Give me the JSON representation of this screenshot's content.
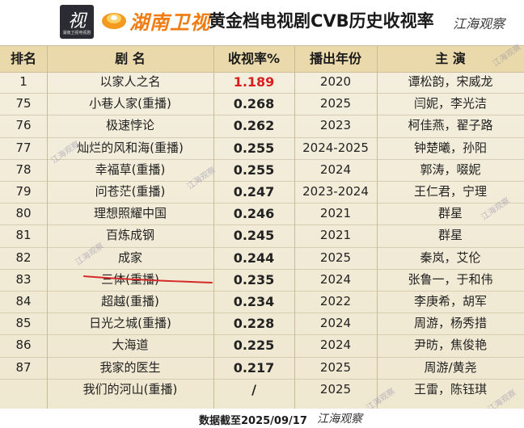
{
  "header": {
    "logo_char": "视",
    "logo_sub": "湖南卫视电视剧",
    "channel_name": "湖南卫视",
    "title": "黄金档电视剧CVB历史收视率",
    "signature": "江海观察"
  },
  "table": {
    "headers": [
      "排名",
      "剧 名",
      "收视率%",
      "播出年份",
      "主 演"
    ],
    "rows": [
      {
        "rank": "1",
        "name": "以家人之名",
        "rate": "1.189",
        "year": "2020",
        "cast": "谭松韵，宋威龙"
      },
      {
        "rank": "75",
        "name": "小巷人家(重播)",
        "rate": "0.268",
        "year": "2025",
        "cast": "闫妮，李光洁"
      },
      {
        "rank": "76",
        "name": "极速悖论",
        "rate": "0.262",
        "year": "2023",
        "cast": "柯佳燕，翟子路"
      },
      {
        "rank": "77",
        "name": "灿烂的风和海(重播)",
        "rate": "0.255",
        "year": "2024-2025",
        "cast": "钟楚曦，孙阳"
      },
      {
        "rank": "78",
        "name": "幸福草(重播)",
        "rate": "0.255",
        "year": "2024",
        "cast": "郭涛，啜妮"
      },
      {
        "rank": "79",
        "name": "问苍茫(重播)",
        "rate": "0.247",
        "year": "2023-2024",
        "cast": "王仁君，宁理"
      },
      {
        "rank": "80",
        "name": "理想照耀中国",
        "rate": "0.246",
        "year": "2021",
        "cast": "群星"
      },
      {
        "rank": "81",
        "name": "百炼成钢",
        "rate": "0.245",
        "year": "2021",
        "cast": "群星"
      },
      {
        "rank": "82",
        "name": "成家",
        "rate": "0.244",
        "year": "2025",
        "cast": "秦岚，艾伦"
      },
      {
        "rank": "83",
        "name": "三体(重播)",
        "rate": "0.235",
        "year": "2024",
        "cast": "张鲁一，于和伟"
      },
      {
        "rank": "84",
        "name": "超越(重播)",
        "rate": "0.234",
        "year": "2022",
        "cast": "李庚希，胡军"
      },
      {
        "rank": "85",
        "name": "日光之城(重播)",
        "rate": "0.228",
        "year": "2024",
        "cast": "周游，杨秀措"
      },
      {
        "rank": "86",
        "name": "大海道",
        "rate": "0.225",
        "year": "2024",
        "cast": "尹昉，焦俊艳"
      },
      {
        "rank": "87",
        "name": "我家的医生",
        "rate": "0.217",
        "year": "2025",
        "cast": "周游/黄尧"
      },
      {
        "rank": "",
        "name": "我们的河山(重播)",
        "rate": "/",
        "year": "2025",
        "cast": "王雷，陈钰琪"
      }
    ]
  },
  "footer": {
    "text": "数据截至2025/09/17",
    "signature": "江海观察"
  },
  "watermark": "江海观察",
  "colors": {
    "header_bg": "#ead9ab",
    "table_bg": "#f4efe0",
    "top_rate": "#d62020",
    "channel_orange": "#f07d14",
    "annotation_red": "#d42a2a"
  }
}
